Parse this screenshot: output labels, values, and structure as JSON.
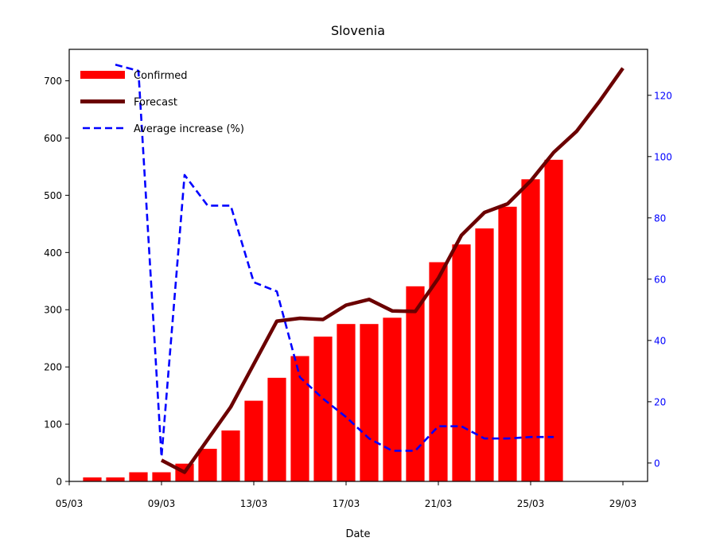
{
  "chart_data": {
    "type": "bar",
    "title": "Slovenia",
    "xlabel": "Date",
    "ylabel": "",
    "y2label": "",
    "x_ticks": [
      "05/03",
      "09/03",
      "13/03",
      "17/03",
      "21/03",
      "25/03",
      "29/03"
    ],
    "ylim": [
      0,
      755
    ],
    "y_ticks": [
      0,
      100,
      200,
      300,
      400,
      500,
      600,
      700
    ],
    "y2lim": [
      -6,
      135
    ],
    "y2_ticks": [
      0,
      20,
      40,
      60,
      80,
      100,
      120
    ],
    "legend": [
      "Confirmed",
      "Forecast",
      "Average increase (%)"
    ],
    "legend_placement": "top-left",
    "colors": {
      "confirmed": "#ff0000",
      "forecast": "#6b0000",
      "average_increase": "#0000ff",
      "right_axis": "#0000ff"
    },
    "series": [
      {
        "name": "Confirmed",
        "kind": "bar",
        "axis": "left",
        "x": [
          "06/03",
          "07/03",
          "08/03",
          "09/03",
          "10/03",
          "11/03",
          "12/03",
          "13/03",
          "14/03",
          "15/03",
          "16/03",
          "17/03",
          "18/03",
          "19/03",
          "20/03",
          "21/03",
          "22/03",
          "23/03",
          "24/03",
          "25/03",
          "26/03"
        ],
        "values": [
          7,
          7,
          16,
          16,
          31,
          57,
          89,
          141,
          181,
          219,
          253,
          275,
          275,
          286,
          341,
          383,
          414,
          442,
          480,
          528,
          562
        ]
      },
      {
        "name": "Forecast",
        "kind": "line",
        "axis": "left",
        "x": [
          "09/03",
          "10/03",
          "11/03",
          "12/03",
          "13/03",
          "14/03",
          "15/03",
          "16/03",
          "17/03",
          "18/03",
          "19/03",
          "20/03",
          "21/03",
          "22/03",
          "23/03",
          "24/03",
          "25/03",
          "26/03",
          "27/03",
          "28/03",
          "29/03"
        ],
        "values": [
          37,
          16,
          73,
          130,
          205,
          280,
          285,
          283,
          308,
          318,
          298,
          297,
          355,
          430,
          470,
          485,
          525,
          575,
          612,
          665,
          722
        ]
      },
      {
        "name": "Average increase (%)",
        "kind": "line",
        "style": "dashed",
        "axis": "right",
        "x": [
          "07/03",
          "08/03",
          "09/03",
          "10/03",
          "11/03",
          "12/03",
          "13/03",
          "14/03",
          "15/03",
          "16/03",
          "17/03",
          "18/03",
          "19/03",
          "20/03",
          "21/03",
          "22/03",
          "23/03",
          "24/03",
          "25/03",
          "26/03"
        ],
        "values": [
          130,
          128,
          2,
          94,
          84,
          84,
          59,
          56,
          28,
          21,
          15,
          8,
          4,
          4,
          12,
          12,
          8,
          8,
          8.5,
          8.5
        ]
      }
    ]
  }
}
